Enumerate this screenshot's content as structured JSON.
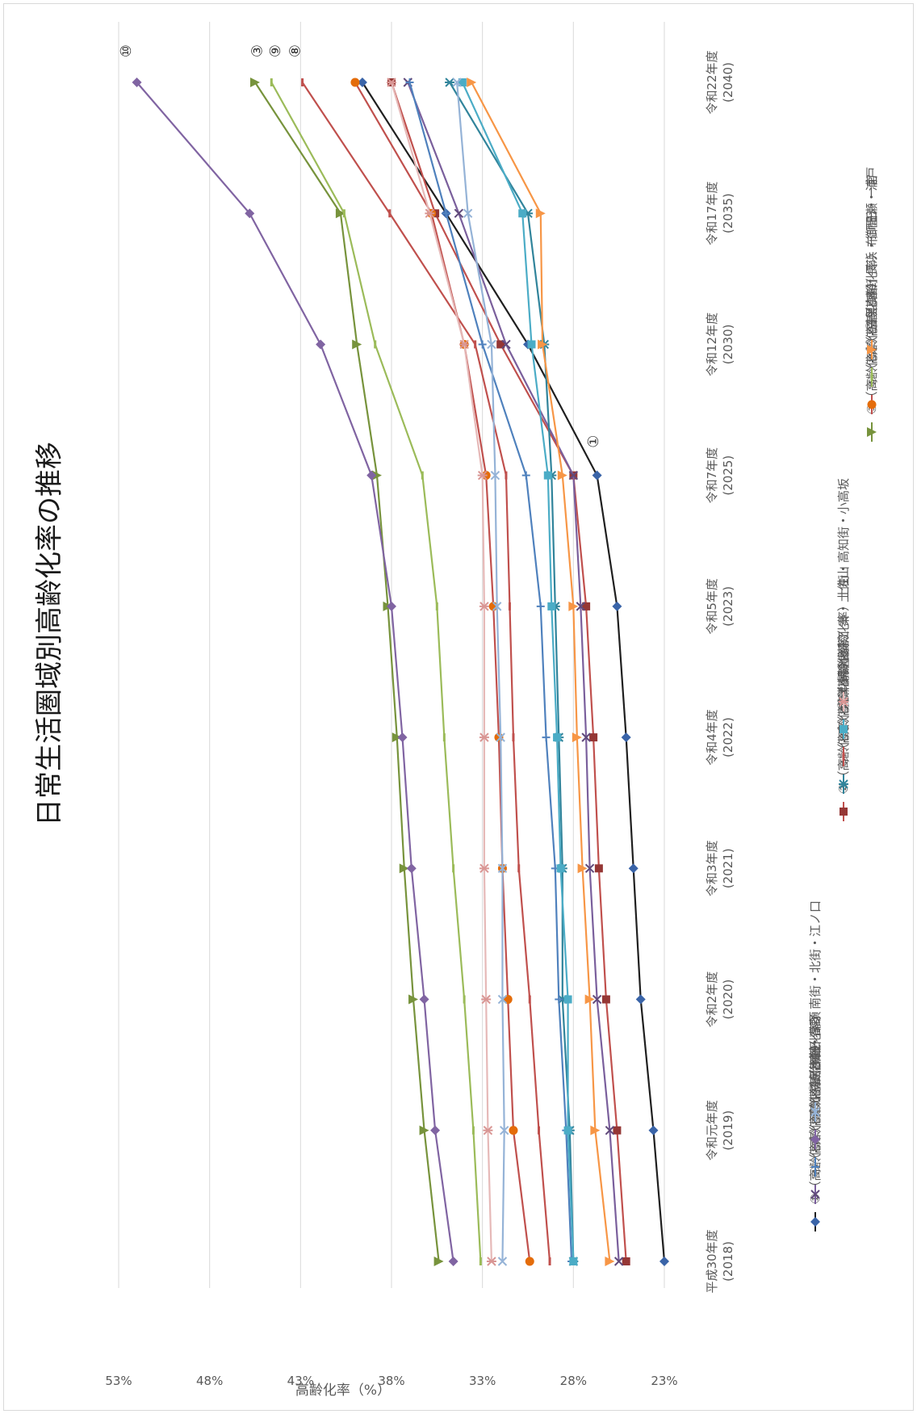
{
  "chart_data": {
    "type": "line",
    "title": "日常生活圏域別高齢化率の推移",
    "ylabel": "高齢化率（%）",
    "ylim": [
      23,
      53
    ],
    "yticks": [
      "23%",
      "28%",
      "33%",
      "38%",
      "43%",
      "48%",
      "53%"
    ],
    "grid": true,
    "legend_position": "bottom",
    "categories": [
      {
        "line1": "平成30年度",
        "line2": "(2018)"
      },
      {
        "line1": "令和元年度",
        "line2": "(2019)"
      },
      {
        "line1": "令和2年度",
        "line2": "(2020)"
      },
      {
        "line1": "令和3年度",
        "line2": "(2021)"
      },
      {
        "line1": "令和4年度",
        "line2": "(2022)"
      },
      {
        "line1": "令和5年度",
        "line2": "(2023)"
      },
      {
        "line1": "令和7年度",
        "line2": "(2025)"
      },
      {
        "line1": "令和12年度",
        "line2": "(2030)"
      },
      {
        "line1": "令和17年度",
        "line2": "(2035)"
      },
      {
        "line1": "令和22年度",
        "line2": "(2040)"
      }
    ],
    "series": [
      {
        "name": "①（高齢化率）下知・五台山・高須",
        "color": "#1f1f1f",
        "markerColor": "#3a64a8",
        "marker": "diamond",
        "values": [
          23.0,
          23.6,
          24.3,
          24.7,
          25.1,
          25.6,
          26.7,
          30.5,
          35.0,
          39.6
        ]
      },
      {
        "name": "②（高齢化率）大津・介良",
        "color": "#c0504d",
        "markerColor": "#953735",
        "marker": "square",
        "values": [
          25.1,
          25.6,
          26.2,
          26.6,
          26.9,
          27.3,
          28.0,
          32.0,
          35.6,
          38.0
        ]
      },
      {
        "name": "③（高齢化率）三里",
        "color": "#77933c",
        "markerColor": "#77933c",
        "marker": "triangle",
        "values": [
          35.4,
          36.2,
          36.8,
          37.3,
          37.7,
          38.2,
          38.8,
          39.9,
          40.8,
          45.5
        ]
      },
      {
        "name": "④（高齢化率）初月・鏡",
        "color": "#7a5f9c",
        "markerColor": "#60497a",
        "marker": "x",
        "values": [
          25.5,
          26.0,
          26.7,
          27.1,
          27.3,
          27.6,
          28.0,
          31.7,
          34.3,
          37.1
        ]
      },
      {
        "name": "⑤（高齢化率）朝倉",
        "color": "#31849b",
        "markerColor": "#31849b",
        "marker": "star",
        "values": [
          28.0,
          28.2,
          28.6,
          28.6,
          28.8,
          29.0,
          29.2,
          29.6,
          30.5,
          34.8
        ]
      },
      {
        "name": "⑥（高齢化率）旭街",
        "color": "#c0504d",
        "markerColor": "#e46c0a",
        "marker": "circle",
        "values": [
          30.4,
          31.3,
          31.6,
          31.9,
          32.1,
          32.4,
          32.8,
          34.0,
          35.8,
          40.0
        ]
      },
      {
        "name": "⑦（高齢化率）鴨田",
        "color": "#4f81bd",
        "markerColor": "#4f81bd",
        "marker": "plus",
        "values": [
          28.1,
          28.4,
          28.8,
          29.0,
          29.5,
          29.8,
          30.6,
          33.0,
          35.0,
          37.0
        ]
      },
      {
        "name": "⑧（高齢化率）潮江",
        "color": "#c0504d",
        "markerColor": "#c0504d",
        "marker": "dash",
        "values": [
          29.3,
          29.9,
          30.4,
          31.0,
          31.3,
          31.5,
          31.7,
          33.4,
          38.1,
          42.9
        ]
      },
      {
        "name": "⑨（高齢化率）長浜・御畳瀬・浦戸",
        "color": "#9bbb59",
        "markerColor": "#9bbb59",
        "marker": "dash",
        "values": [
          33.1,
          33.5,
          34.0,
          34.6,
          35.1,
          35.5,
          36.3,
          38.9,
          40.6,
          44.6
        ]
      },
      {
        "name": "⑩（高齢化率）春野",
        "color": "#8064a2",
        "markerColor": "#8064a2",
        "marker": "diamond",
        "values": [
          34.6,
          35.6,
          36.2,
          36.9,
          37.4,
          38.0,
          39.1,
          41.9,
          45.8,
          52.0
        ]
      },
      {
        "name": "⑪（高齢化率）秦・土佐山",
        "color": "#4bacc6",
        "markerColor": "#4bacc6",
        "marker": "square",
        "values": [
          28.0,
          28.3,
          28.3,
          28.7,
          28.9,
          29.2,
          29.4,
          30.3,
          30.8,
          34.1
        ]
      },
      {
        "name": "⑫（高齢化率）布師田・一宮",
        "color": "#f79646",
        "markerColor": "#f79646",
        "marker": "triangle",
        "values": [
          26.0,
          26.8,
          27.1,
          27.5,
          27.8,
          28.0,
          28.6,
          29.7,
          29.8,
          33.6
        ]
      },
      {
        "name": "⑬（高齢化率）南街・北街・江ノ口",
        "color": "#95b3d7",
        "markerColor": "#95b3d7",
        "marker": "x",
        "values": [
          31.9,
          31.8,
          31.9,
          31.9,
          32.0,
          32.2,
          32.3,
          32.5,
          33.8,
          34.4
        ]
      },
      {
        "name": "⑭（高齢化率）上街・高知街・小高坂",
        "color": "#e6b9b8",
        "markerColor": "#d99694",
        "marker": "star",
        "values": [
          32.5,
          32.7,
          32.8,
          32.9,
          32.9,
          32.9,
          33.0,
          34.0,
          35.9,
          38.0
        ]
      }
    ],
    "annotations": [
      {
        "text": "①",
        "category_index": 6,
        "y": 26.9
      },
      {
        "text": "⑩",
        "category_index": 9,
        "y": 52.6
      },
      {
        "text": "③",
        "category_index": 9,
        "y": 45.4
      },
      {
        "text": "⑨",
        "category_index": 9,
        "y": 44.4
      },
      {
        "text": "⑧",
        "category_index": 9,
        "y": 43.3
      }
    ]
  }
}
